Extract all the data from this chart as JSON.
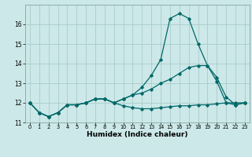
{
  "title": "",
  "xlabel": "Humidex (Indice chaleur)",
  "ylabel": "",
  "background_color": "#cce8e8",
  "grid_color": "#aacccc",
  "line_color": "#006868",
  "x_values": [
    0,
    1,
    2,
    3,
    4,
    5,
    6,
    7,
    8,
    9,
    10,
    11,
    12,
    13,
    14,
    15,
    16,
    17,
    18,
    19,
    20,
    21,
    22,
    23
  ],
  "x_labels": [
    "0",
    "1",
    "2",
    "3",
    "4",
    "5",
    "6",
    "7",
    "8",
    "9",
    "10",
    "11",
    "12",
    "13",
    "14",
    "15",
    "16",
    "17",
    "18",
    "19",
    "20",
    "21",
    "22",
    "23"
  ],
  "series": [
    [
      12.0,
      11.5,
      11.3,
      11.5,
      11.9,
      11.9,
      12.0,
      12.2,
      12.2,
      12.0,
      11.85,
      11.75,
      11.7,
      11.7,
      11.75,
      11.8,
      11.85,
      11.85,
      11.9,
      11.9,
      11.95,
      12.0,
      12.0,
      12.0
    ],
    [
      12.0,
      11.5,
      11.3,
      11.5,
      11.9,
      11.9,
      12.0,
      12.2,
      12.2,
      12.0,
      12.2,
      12.4,
      12.5,
      12.7,
      13.0,
      13.2,
      13.5,
      13.8,
      13.9,
      13.9,
      13.1,
      12.0,
      11.9,
      12.0
    ],
    [
      12.0,
      11.5,
      11.3,
      11.5,
      11.9,
      11.9,
      12.0,
      12.2,
      12.2,
      12.0,
      12.2,
      12.4,
      12.8,
      13.4,
      14.2,
      16.3,
      16.55,
      16.3,
      15.0,
      13.9,
      13.3,
      12.3,
      11.9,
      12.0
    ]
  ],
  "ylim": [
    11.0,
    17.0
  ],
  "yticks": [
    11,
    12,
    13,
    14,
    15,
    16
  ],
  "xlim": [
    -0.5,
    23.5
  ],
  "xtick_fontsize": 4.8,
  "ytick_fontsize": 5.5,
  "xlabel_fontsize": 6.5
}
